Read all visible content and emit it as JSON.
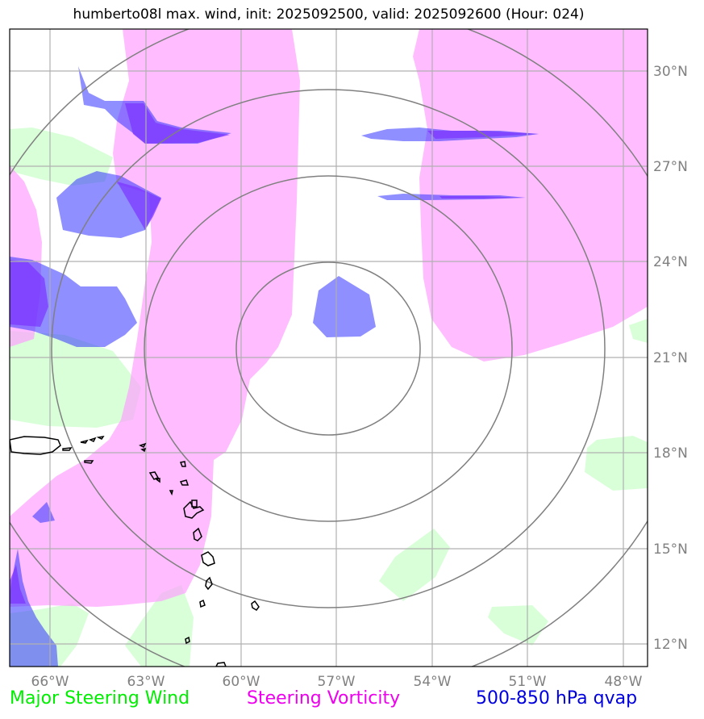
{
  "title": "humberto08l max. wind, init: 2025092500, valid: 2025092600 (Hour: 024)",
  "legend": [
    {
      "label": "Major Steering Wind",
      "color": "#00ee00"
    },
    {
      "label": "Steering Vorticity",
      "color": "#ee00ee"
    },
    {
      "label": "500-850 hPa qvap",
      "color": "#0000dd"
    }
  ],
  "axes": {
    "lon_labels": [
      "66°W",
      "63°W",
      "60°W",
      "57°W",
      "54°W",
      "51°W",
      "48°W"
    ],
    "lat_labels": [
      "30°N",
      "27°N",
      "24°N",
      "21°N",
      "18°N",
      "15°N",
      "12°N"
    ]
  },
  "layer_colors": {
    "vorticity": "#ff99ff",
    "wind": "#ccffcc",
    "qvap": "#3333ff",
    "qvap_strong": "#6a33ff",
    "coast": "#000000",
    "grid": "#b0b0b0",
    "range_rings": "#808080"
  },
  "storm_center": {
    "lon": -57,
    "lat": 21
  }
}
